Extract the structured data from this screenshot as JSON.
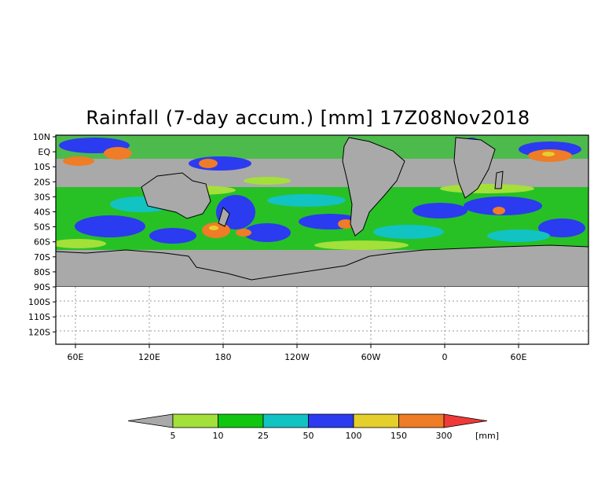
{
  "title": "Rainfall (7-day accum.) [mm] 17Z08Nov2018",
  "lat_labels": [
    "10N",
    "EQ",
    "10S",
    "20S",
    "30S",
    "40S",
    "50S",
    "60S",
    "70S",
    "80S",
    "90S",
    "100S",
    "110S",
    "120S"
  ],
  "lon_labels": [
    "60E",
    "120E",
    "180",
    "120W",
    "60W",
    "0",
    "60E"
  ],
  "legend": {
    "thresholds": [
      "5",
      "10",
      "25",
      "50",
      "100",
      "150",
      "300"
    ],
    "unit": "[mm]",
    "colors": [
      "#a9a9a9",
      "#a3e03a",
      "#10c60f",
      "#12c3c3",
      "#2b3bf0",
      "#e4cf2d",
      "#ef7c26",
      "#ee3a38"
    ]
  },
  "colors": {
    "missing_gray": "#a9a9a9",
    "coast": "#000000",
    "grid": "#999999"
  }
}
